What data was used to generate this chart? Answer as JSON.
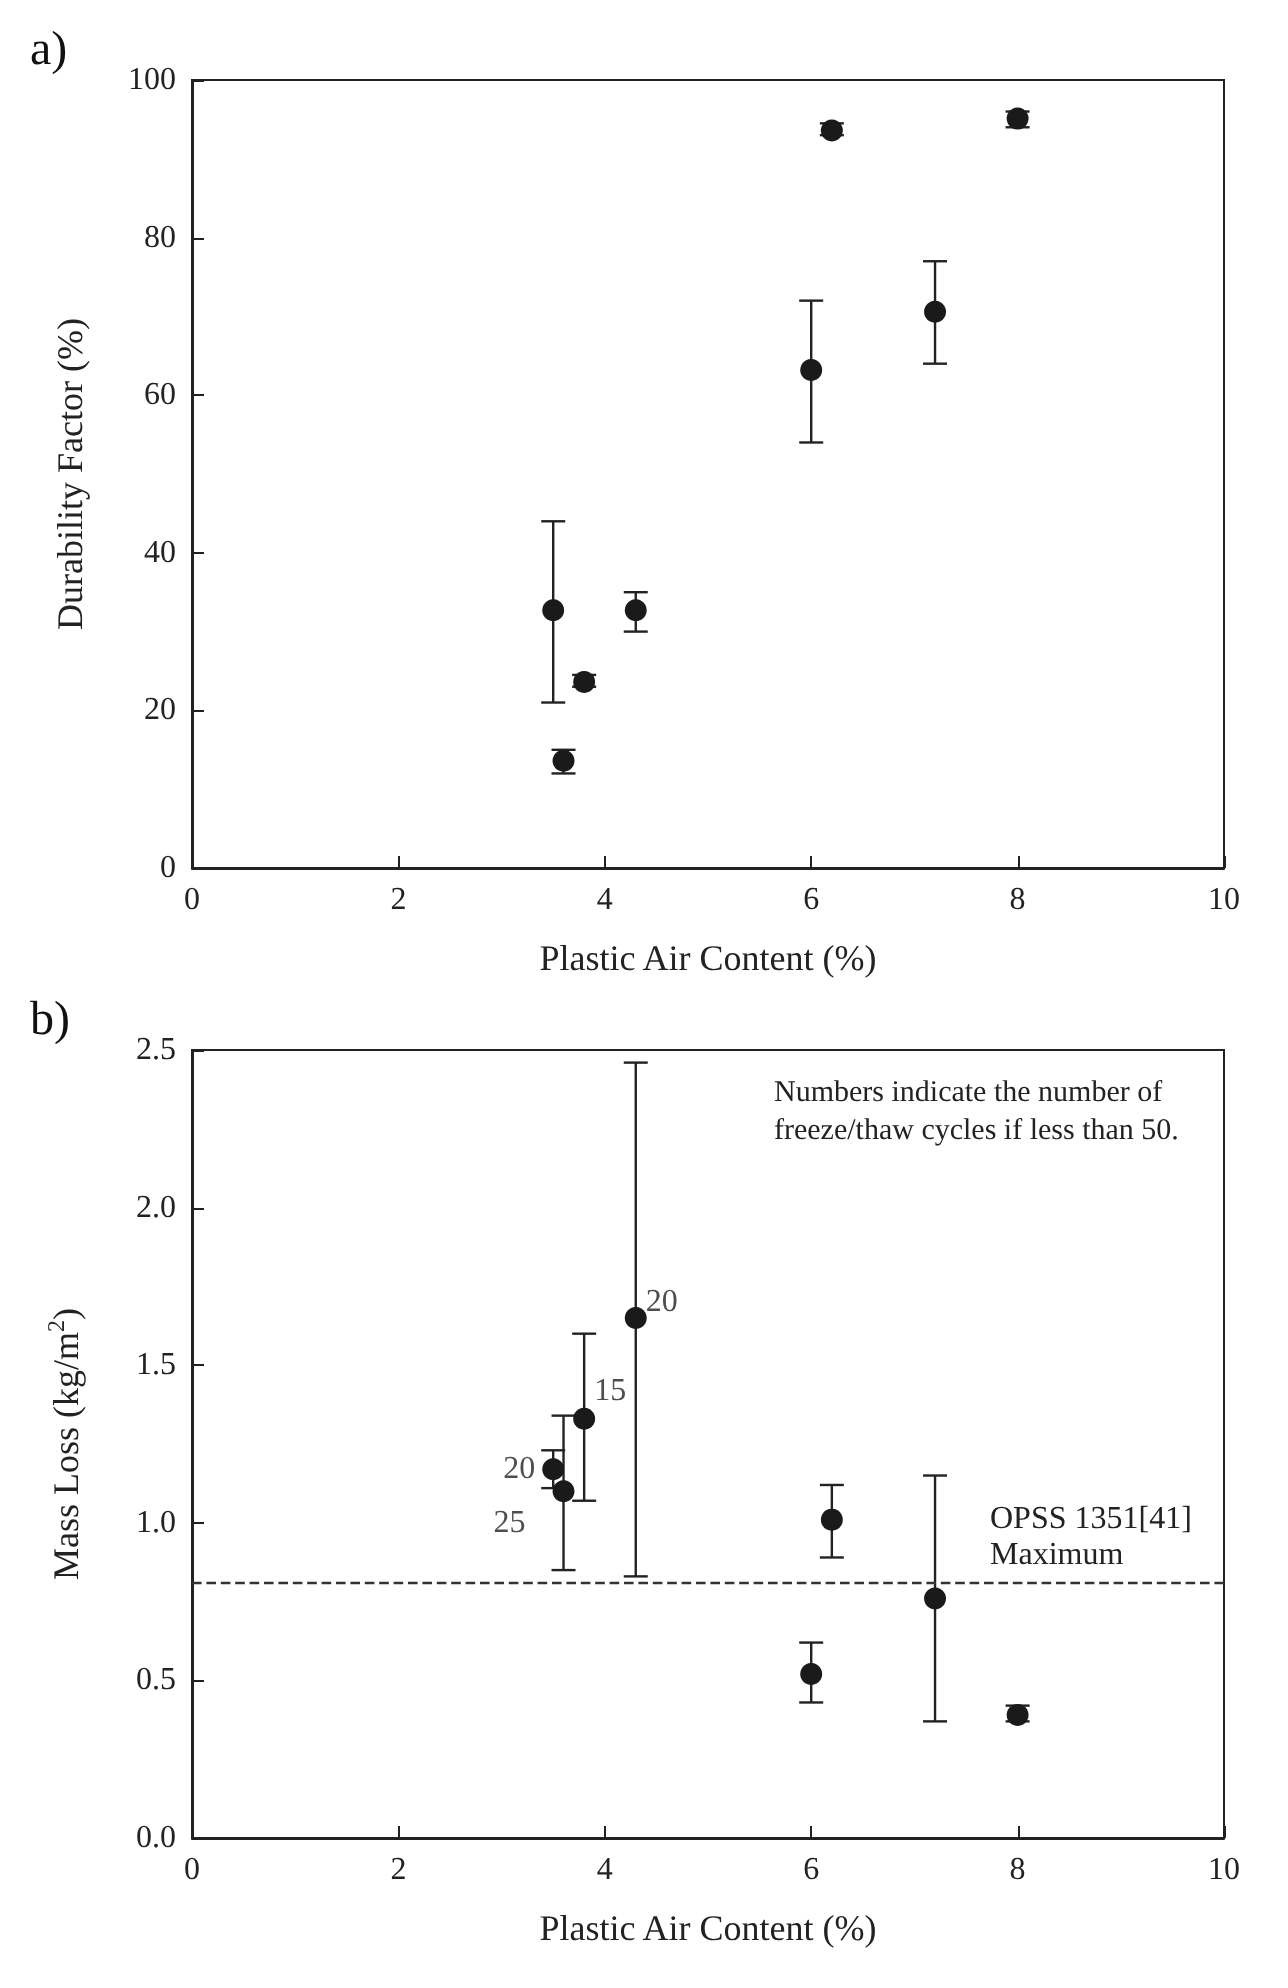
{
  "chart_data": [
    {
      "type": "scatter",
      "title": "a)",
      "xlabel": "Plastic Air Content (%)",
      "ylabel": "Durability Factor (%)",
      "x": [
        3.5,
        3.6,
        3.8,
        4.3,
        6.0,
        6.2,
        7.2,
        8.0
      ],
      "series": [
        {
          "color": "#1a1a1a",
          "values": [
            32.7,
            13.6,
            23.6,
            32.7,
            63.2,
            93.6,
            70.6,
            95.1
          ],
          "errors": [
            [
              21,
              44
            ],
            [
              12,
              15
            ],
            [
              23,
              24.5
            ],
            [
              30,
              35
            ],
            [
              54,
              72
            ],
            [
              93,
              94.5
            ],
            [
              64,
              77
            ],
            [
              94,
              96
            ]
          ]
        }
      ],
      "xlim": [
        0,
        10
      ],
      "xticks": [
        0,
        2,
        4,
        6,
        8,
        10
      ],
      "ylim": [
        0,
        100
      ],
      "yticks": [
        0,
        20,
        40,
        60,
        80,
        100
      ],
      "grid": false,
      "marker": "circle"
    },
    {
      "type": "scatter",
      "title": "b)",
      "xlabel": "Plastic Air Content (%)",
      "ylabel": "Mass Loss (kg/m$^{2}$)",
      "x": [
        3.5,
        3.6,
        3.8,
        4.3,
        6.0,
        6.2,
        7.2,
        8.0
      ],
      "series": [
        {
          "color": "#1a1a1a",
          "values": [
            1.17,
            1.1,
            1.33,
            1.65,
            0.52,
            1.01,
            0.76,
            0.39
          ],
          "errors": [
            [
              1.11,
              1.23
            ],
            [
              0.85,
              1.34
            ],
            [
              1.07,
              1.6
            ],
            [
              0.83,
              2.46
            ],
            [
              0.43,
              0.62
            ],
            [
              0.89,
              1.12
            ],
            [
              0.37,
              1.15
            ],
            [
              0.37,
              0.42
            ]
          ]
        }
      ],
      "xlim": [
        0,
        10
      ],
      "xticks": [
        0,
        2,
        4,
        6,
        8,
        10
      ],
      "ylim": [
        0,
        2.5
      ],
      "yticks": [
        {
          "value": 0,
          "label": "0.0"
        },
        {
          "value": 0.5,
          "label": "0.5"
        },
        {
          "value": 1,
          "label": "1.0"
        },
        {
          "value": 1.5,
          "label": "1.5"
        },
        {
          "value": 2,
          "label": "2.0"
        },
        {
          "value": 2.5,
          "label": "2.5"
        }
      ],
      "ref_lines": [
        {
          "axis": "y",
          "value": 0.81,
          "label": "OPSS 1351[41] Maximum",
          "line_style": "dashed",
          "color": "#333333"
        }
      ],
      "annotations": [
        "Numbers indicate the number of freeze/thaw cycles if less than 50.",
        {
          "text": "20",
          "x": 3.5,
          "y": 1.17
        },
        {
          "text": "25",
          "x": 3.6,
          "y": 1.1
        },
        {
          "text": "15",
          "x": 3.8,
          "y": 1.33
        },
        {
          "text": "20",
          "x": 4.3,
          "y": 1.65
        }
      ],
      "grid": false,
      "marker": "circle"
    }
  ]
}
